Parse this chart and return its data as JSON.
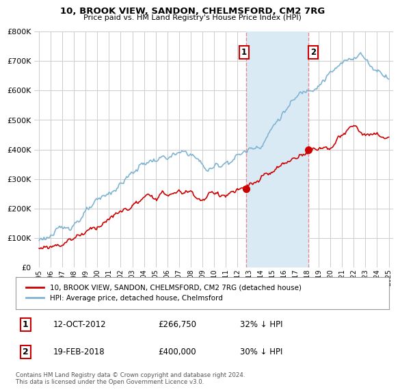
{
  "title": "10, BROOK VIEW, SANDON, CHELMSFORD, CM2 7RG",
  "subtitle": "Price paid vs. HM Land Registry's House Price Index (HPI)",
  "legend_label_red": "10, BROOK VIEW, SANDON, CHELMSFORD, CM2 7RG (detached house)",
  "legend_label_blue": "HPI: Average price, detached house, Chelmsford",
  "footer": "Contains HM Land Registry data © Crown copyright and database right 2024.\nThis data is licensed under the Open Government Licence v3.0.",
  "ylim": [
    0,
    800000
  ],
  "yticks": [
    0,
    100000,
    200000,
    300000,
    400000,
    500000,
    600000,
    700000,
    800000
  ],
  "sale1_year": 2012.79,
  "sale1_price": 266750,
  "sale2_year": 2018.12,
  "sale2_price": 400000,
  "red_color": "#cc0000",
  "blue_color": "#7fb3d3",
  "shade_color": "#daeaf5",
  "vline_color": "#e88080",
  "background_color": "#ffffff",
  "grid_color": "#cccccc",
  "ann1_date": "12-OCT-2012",
  "ann1_price": "£266,750",
  "ann1_hpi": "32% ↓ HPI",
  "ann2_date": "19-FEB-2018",
  "ann2_price": "£400,000",
  "ann2_hpi": "30% ↓ HPI"
}
